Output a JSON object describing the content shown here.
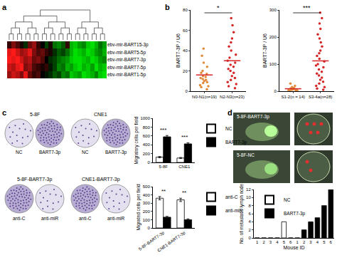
{
  "chart_data": [
    {
      "panel": "a",
      "type": "heatmap",
      "rows": [
        "ebv-mir-BART15-3p",
        "ebv-mir-BART5-5p",
        "ebv-mir-BART7-3p",
        "ebv-mir-BART7-5p",
        "ebv-mir-BART1-5p"
      ],
      "cells": [
        [
          0.2,
          0.5,
          0.3,
          0.1,
          -0.2,
          0.4,
          0.6,
          0.2,
          0,
          -0.3,
          0.1,
          -0.5,
          -0.6,
          -0.4,
          0.2,
          -0.8,
          -0.9,
          -0.7,
          -0.6,
          -0.9,
          -1,
          -0.8,
          -0.5,
          -0.7
        ],
        [
          0.9,
          1,
          0.8,
          0.6,
          0.7,
          0.9,
          0.5,
          0.3,
          0.4,
          0.2,
          0.1,
          -0.2,
          -0.4,
          -0.3,
          -0.5,
          -0.8,
          -1,
          -0.9,
          -0.8,
          -1,
          -0.9,
          -0.7,
          -0.6,
          -0.8
        ],
        [
          1,
          0.9,
          1,
          0.8,
          0.6,
          0.7,
          0.4,
          0.5,
          0.3,
          0,
          -0.2,
          -0.3,
          -0.5,
          -0.6,
          -0.7,
          -0.9,
          -1,
          -1,
          -0.9,
          -0.8,
          -1,
          -0.9,
          -0.7,
          -0.6
        ],
        [
          0.8,
          0.7,
          0.9,
          1,
          0.5,
          0.6,
          0.3,
          0.2,
          0.1,
          0.2,
          -0.1,
          -0.3,
          -0.6,
          -0.5,
          -0.8,
          -0.7,
          -0.9,
          -1,
          -0.8,
          -0.9,
          -0.7,
          -1,
          -0.8,
          -0.9
        ],
        [
          0.6,
          0.8,
          0.7,
          0.5,
          0.9,
          0.4,
          0.2,
          0.3,
          0,
          -0.1,
          -0.2,
          -0.4,
          -0.3,
          -0.6,
          -0.5,
          -0.9,
          -0.8,
          -0.7,
          -1,
          -0.9,
          -0.8,
          -0.6,
          -0.9,
          -1
        ]
      ],
      "zlim": [
        -1,
        1
      ],
      "tick_labels": "y"
    },
    {
      "panel": "b",
      "type": "strip",
      "y_label": "BART7-3P / U6",
      "categories": [
        "N0-N1(n=19)",
        "N2-N3(n=23)"
      ],
      "values": [
        [
          2,
          4,
          5,
          6,
          8,
          9,
          10,
          11,
          12,
          13,
          14,
          15,
          17,
          18,
          20,
          24,
          28,
          35,
          42
        ],
        [
          3,
          5,
          7,
          9,
          11,
          13,
          15,
          18,
          20,
          22,
          24,
          26,
          28,
          30,
          33,
          36,
          40,
          44,
          48,
          52,
          58,
          65,
          72
        ]
      ],
      "means": [
        16,
        30
      ],
      "colors": [
        "#e08a3c",
        "#d62728"
      ],
      "ylim": [
        0,
        80
      ],
      "yticks": [
        0,
        20,
        40,
        60,
        80
      ],
      "significance": "*"
    },
    {
      "type": "strip",
      "y_label": "BART7-3P / U6",
      "categories": [
        "S1-2(n = 14)",
        "S3-4a(n=28)"
      ],
      "values": [
        [
          1,
          2,
          3,
          4,
          5,
          6,
          7,
          8,
          9,
          10,
          12,
          15,
          20,
          28
        ],
        [
          5,
          10,
          15,
          20,
          28,
          35,
          42,
          50,
          58,
          65,
          72,
          80,
          88,
          95,
          100,
          110,
          120,
          130,
          140,
          150,
          165,
          180,
          195,
          210,
          230,
          250,
          270,
          290
        ]
      ],
      "means": [
        9,
        112
      ],
      "colors": [
        "#e08a3c",
        "#d62728"
      ],
      "ylim": [
        0,
        300
      ],
      "yticks": [
        0,
        100,
        200,
        300
      ],
      "significance": "***"
    },
    {
      "panel": "c",
      "type": "bar",
      "y_label": "Migratory cells per field",
      "categories": [
        "5-8F",
        "CNE1"
      ],
      "series": [
        {
          "name": "NC",
          "color": "#ffffff",
          "values": [
            120,
            100
          ],
          "errors": [
            15,
            12
          ]
        },
        {
          "name": "BART7-3p",
          "color": "#000000",
          "values": [
            580,
            420
          ],
          "errors": [
            30,
            25
          ]
        }
      ],
      "ylim": [
        0,
        1000
      ],
      "yticks": [
        0,
        200,
        400,
        600,
        800,
        1000
      ],
      "significance": [
        "***",
        "***"
      ],
      "legend": "right"
    },
    {
      "type": "bar",
      "y_label": "Migrated cells per field",
      "categories": [
        "5-8F-BART7-3p",
        "CNE1-BART7-3p"
      ],
      "series": [
        {
          "name": "anti-C",
          "color": "#ffffff",
          "values": [
            360,
            340
          ],
          "errors": [
            20,
            20
          ]
        },
        {
          "name": "anti-miR",
          "color": "#000000",
          "values": [
            130,
            100
          ],
          "errors": [
            10,
            10
          ]
        }
      ],
      "ylim": [
        0,
        500
      ],
      "yticks": [
        0,
        100,
        200,
        300,
        400,
        500
      ],
      "significance": [
        "**",
        "**"
      ],
      "legend": "right"
    },
    {
      "panel": "d",
      "type": "bar",
      "x_label": "Mouse ID",
      "y_label": "No. of metastatic lymph node",
      "categories": [
        "1",
        "2",
        "3",
        "4",
        "5",
        "6",
        "1",
        "2",
        "3",
        "4",
        "5",
        "6"
      ],
      "series": [
        {
          "name": "NC",
          "color": "#ffffff",
          "values": [
            0,
            0,
            0,
            0,
            4,
            0,
            null,
            null,
            null,
            null,
            null,
            null
          ]
        },
        {
          "name": "BART7-3p",
          "color": "#000000",
          "values": [
            null,
            null,
            null,
            null,
            null,
            null,
            0,
            2,
            4,
            5,
            8,
            12
          ]
        }
      ],
      "ylim": [
        0,
        12
      ],
      "yticks": [
        0,
        2,
        4,
        6,
        8,
        10,
        12
      ],
      "legend": "top left"
    }
  ],
  "images": {
    "c": {
      "top": {
        "headers": [
          "5-8F",
          "CNE1"
        ],
        "wells": [
          "NC",
          "BART7-3p",
          "NC",
          "BART7-3p"
        ]
      },
      "bottom": {
        "headers": [
          "5-8F-BART7-3p",
          "CNE1-BART7-3p"
        ],
        "wells": [
          "anti-C",
          "anti-miR",
          "anti-C",
          "anti-miR"
        ]
      }
    },
    "d": {
      "labels": [
        "5-8F-BART7-3p",
        "5-8F-NC"
      ]
    }
  }
}
